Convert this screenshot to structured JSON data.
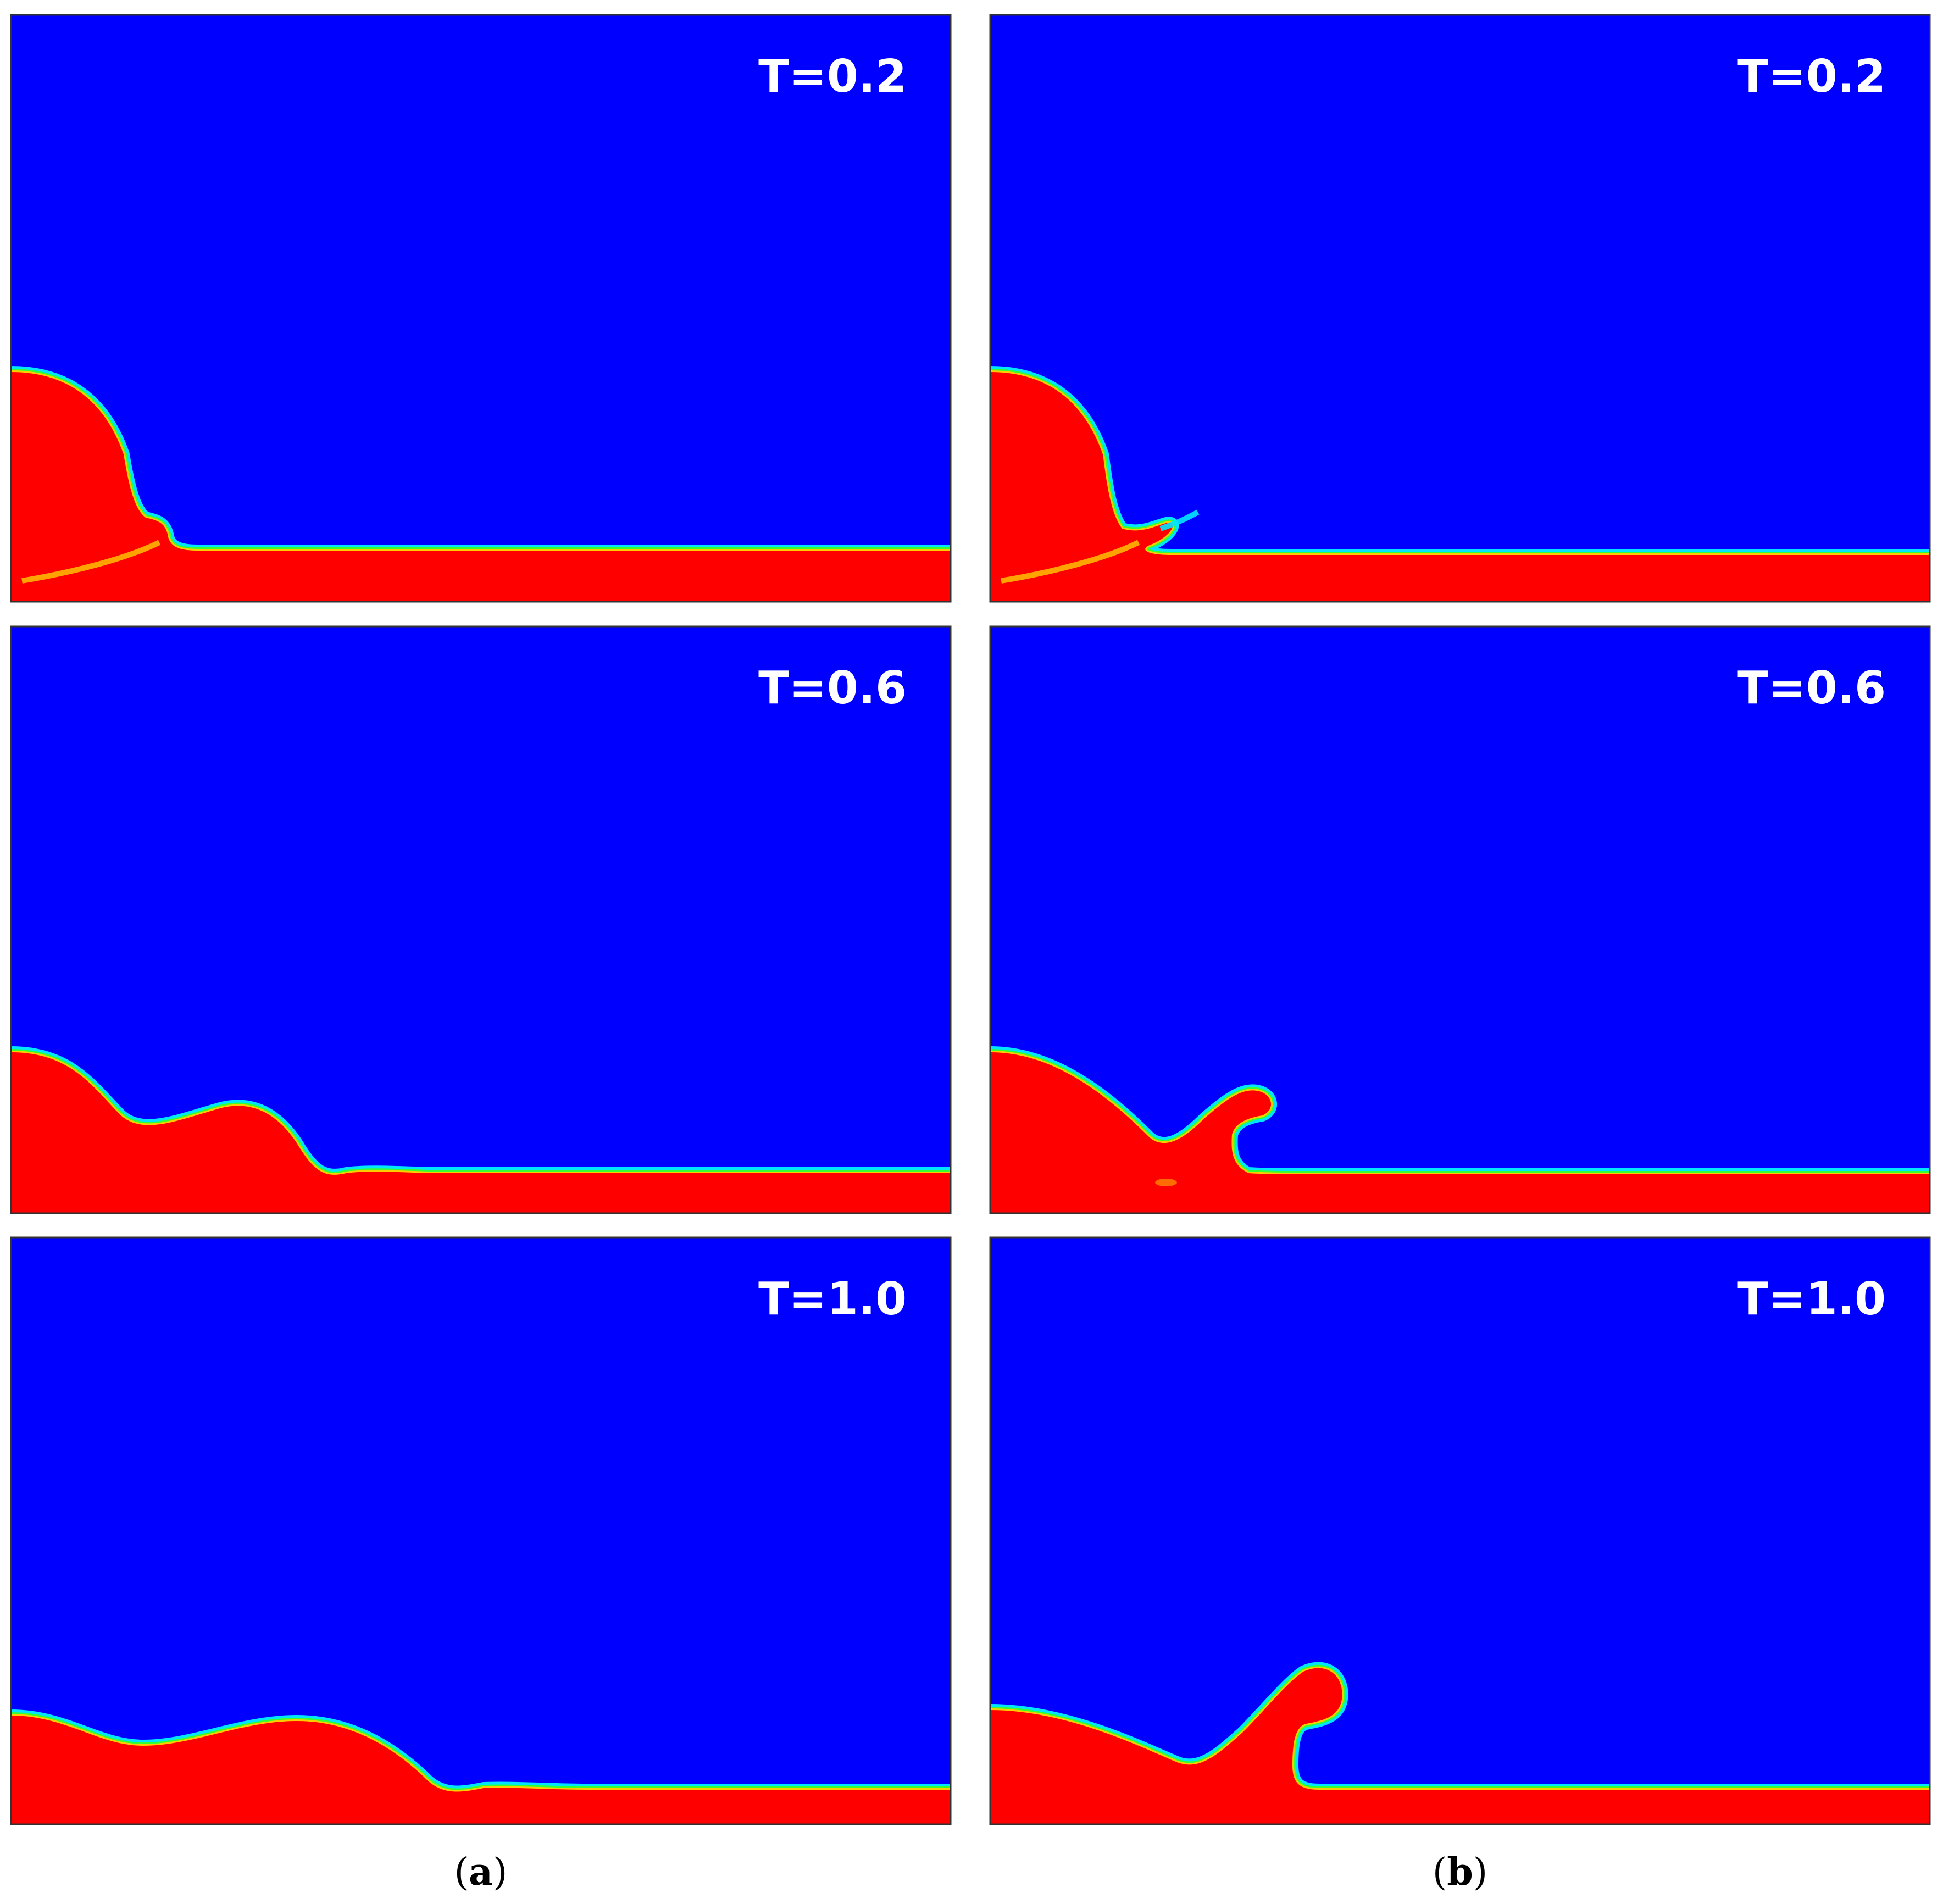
{
  "figure": {
    "columns": [
      {
        "id": "a",
        "caption_open": "(",
        "caption_letter": "a",
        "caption_close": ")"
      },
      {
        "id": "b",
        "caption_open": "(",
        "caption_letter": "b",
        "caption_close": ")"
      }
    ],
    "time_labels": [
      "T=0.2",
      "T=0.6",
      "T=1.0"
    ]
  },
  "colors": {
    "gas": "#0000ff",
    "liquid": "#ff0000",
    "interface_outer": "#00e5ff",
    "interface_mid": "#33ff33",
    "interface_inner": "#ffcc00",
    "frame": "#333333"
  }
}
